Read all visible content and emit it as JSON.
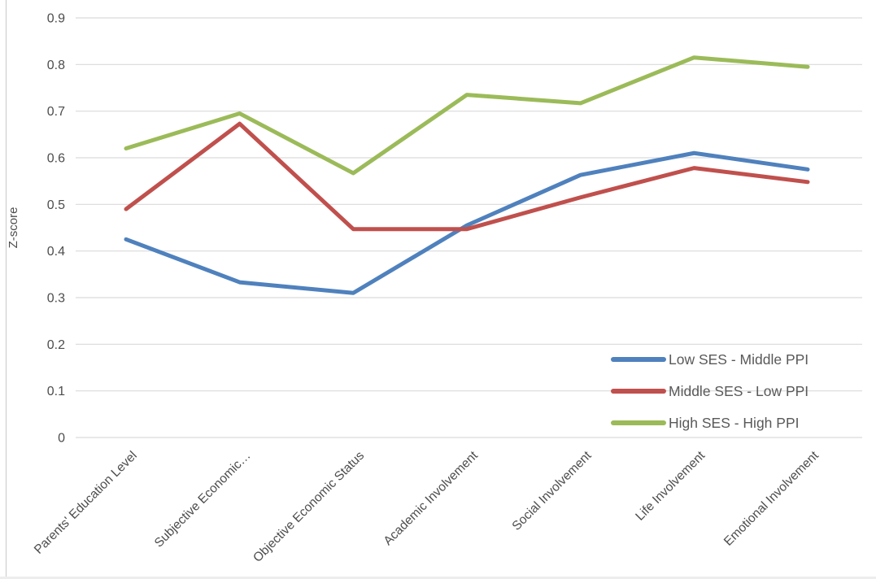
{
  "chart_data": {
    "type": "line",
    "title": "",
    "xlabel": "",
    "ylabel": "Z-score",
    "ylim": [
      0,
      0.9
    ],
    "ytick_step": 0.1,
    "ytick_labels": [
      "0",
      "0.1",
      "0.2",
      "0.3",
      "0.4",
      "0.5",
      "0.6",
      "0.7",
      "0.8",
      "0.9"
    ],
    "grid": true,
    "legend_position": "inside-bottom-right",
    "categories": [
      "Parents' Education Level",
      "Subjective Economic…",
      "Objective Economic Status",
      "Academic Involvement",
      "Social Involvement",
      "Life Involvement",
      "Emotional Involvement"
    ],
    "series": [
      {
        "name": "Low SES - Middle PPI",
        "color": "#4F81BD",
        "values": [
          0.425,
          0.333,
          0.31,
          0.455,
          0.563,
          0.61,
          0.575
        ]
      },
      {
        "name": "Middle SES - Low PPI",
        "color": "#C0504D",
        "values": [
          0.49,
          0.673,
          0.447,
          0.447,
          0.515,
          0.578,
          0.548
        ]
      },
      {
        "name": "High SES - High PPI",
        "color": "#9BBB59",
        "values": [
          0.62,
          0.695,
          0.567,
          0.735,
          0.717,
          0.815,
          0.795
        ]
      }
    ]
  },
  "colors": {
    "gridline": "#d9d9d9",
    "axis_text": "#4d4d4d",
    "legend_text": "#595959",
    "background": "#ffffff"
  }
}
